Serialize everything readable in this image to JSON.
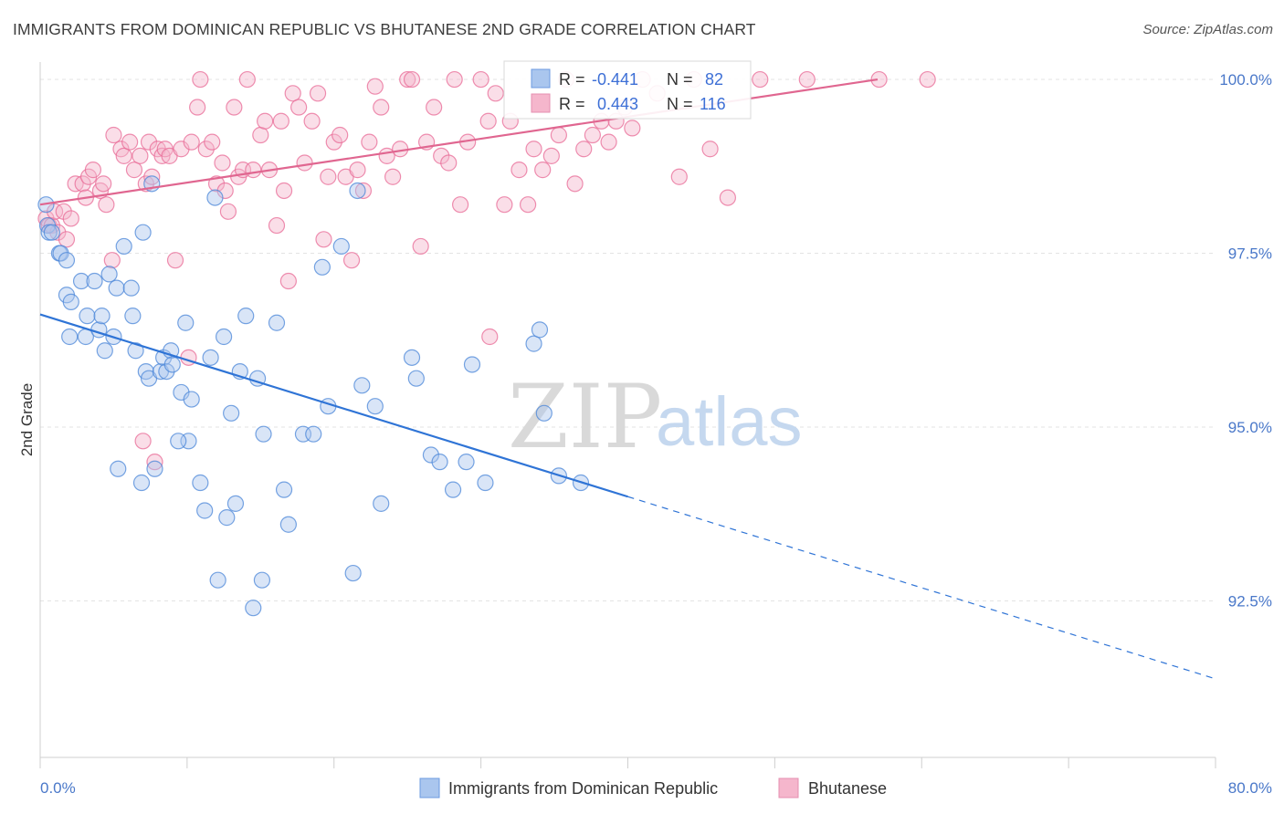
{
  "header": {
    "title": "IMMIGRANTS FROM DOMINICAN REPUBLIC VS BHUTANESE 2ND GRADE CORRELATION CHART",
    "source": "Source: ZipAtlas.com"
  },
  "watermark": {
    "part1": "ZIP",
    "part2": "atlas"
  },
  "colors": {
    "blue": "#4a86d8",
    "pink": "#e86a96",
    "blue_fill": "#aac6ee",
    "pink_fill": "#f5b6cc",
    "axis_text": "#4a78c9"
  },
  "legend_box": {
    "rows": [
      {
        "r_label": "R =",
        "r_value": "-0.441",
        "n_label": "N =",
        "n_value": "82"
      },
      {
        "r_label": "R =",
        "r_value": "0.443",
        "n_label": "N =",
        "n_value": "116"
      }
    ]
  },
  "bottom_legend": [
    {
      "label": "Immigrants from Dominican Republic"
    },
    {
      "label": "Bhutanese"
    }
  ],
  "chart_data": {
    "type": "scatter",
    "title": "IMMIGRANTS FROM DOMINICAN REPUBLIC VS BHUTANESE 2ND GRADE CORRELATION CHART",
    "xlabel": "",
    "ylabel": "2nd Grade",
    "x_tick_labels": [
      "0.0%",
      "80.0%"
    ],
    "y_tick_labels": [
      "100.0%",
      "97.5%",
      "95.0%",
      "92.5%"
    ],
    "xlim": [
      0,
      80
    ],
    "ylim": [
      90.25,
      100.25
    ],
    "grid": true,
    "legend_position": "bottom",
    "series": [
      {
        "name": "Immigrants from Dominican Republic",
        "color": "#4a86d8",
        "r": -0.441,
        "n": 82,
        "trend": {
          "x_start": 0,
          "y_start": 96.62,
          "x_solid_end": 40,
          "y_solid_end": 94.0,
          "x_end": 80,
          "y_end": 91.38
        },
        "points": [
          [
            0.4,
            98.2
          ],
          [
            0.5,
            97.9
          ],
          [
            0.6,
            97.8
          ],
          [
            0.8,
            97.8
          ],
          [
            1.3,
            97.5
          ],
          [
            1.4,
            97.5
          ],
          [
            1.8,
            97.4
          ],
          [
            1.8,
            96.9
          ],
          [
            2.1,
            96.8
          ],
          [
            2.0,
            96.3
          ],
          [
            2.8,
            97.1
          ],
          [
            3.2,
            96.6
          ],
          [
            3.1,
            96.3
          ],
          [
            3.7,
            97.1
          ],
          [
            4.0,
            96.4
          ],
          [
            4.2,
            96.6
          ],
          [
            4.4,
            96.1
          ],
          [
            4.7,
            97.2
          ],
          [
            5.0,
            96.3
          ],
          [
            5.2,
            97.0
          ],
          [
            5.7,
            97.6
          ],
          [
            6.2,
            97.0
          ],
          [
            6.3,
            96.6
          ],
          [
            6.5,
            96.1
          ],
          [
            7.0,
            97.8
          ],
          [
            7.2,
            95.8
          ],
          [
            7.4,
            95.7
          ],
          [
            7.6,
            98.5
          ],
          [
            8.2,
            95.8
          ],
          [
            8.4,
            96.0
          ],
          [
            8.6,
            95.8
          ],
          [
            8.9,
            96.1
          ],
          [
            9.0,
            95.9
          ],
          [
            9.6,
            95.5
          ],
          [
            9.9,
            96.5
          ],
          [
            10.3,
            95.4
          ],
          [
            10.1,
            94.8
          ],
          [
            9.4,
            94.8
          ],
          [
            10.9,
            94.2
          ],
          [
            11.2,
            93.8
          ],
          [
            11.6,
            96.0
          ],
          [
            11.9,
            98.3
          ],
          [
            12.1,
            92.8
          ],
          [
            12.5,
            96.3
          ],
          [
            12.7,
            93.7
          ],
          [
            13.0,
            95.2
          ],
          [
            13.3,
            93.9
          ],
          [
            13.6,
            95.8
          ],
          [
            14.0,
            96.6
          ],
          [
            14.5,
            92.4
          ],
          [
            14.8,
            95.7
          ],
          [
            15.2,
            94.9
          ],
          [
            15.1,
            92.8
          ],
          [
            16.1,
            96.5
          ],
          [
            16.6,
            94.1
          ],
          [
            16.9,
            93.6
          ],
          [
            17.9,
            94.9
          ],
          [
            18.6,
            94.9
          ],
          [
            19.2,
            97.3
          ],
          [
            19.6,
            95.3
          ],
          [
            20.5,
            97.6
          ],
          [
            21.3,
            92.9
          ],
          [
            21.6,
            98.4
          ],
          [
            21.9,
            95.6
          ],
          [
            22.8,
            95.3
          ],
          [
            23.2,
            93.9
          ],
          [
            25.3,
            96.0
          ],
          [
            25.6,
            95.7
          ],
          [
            26.6,
            94.6
          ],
          [
            27.2,
            94.5
          ],
          [
            28.1,
            94.1
          ],
          [
            29.0,
            94.5
          ],
          [
            29.4,
            95.9
          ],
          [
            30.3,
            94.2
          ],
          [
            33.6,
            96.2
          ],
          [
            34.0,
            96.4
          ],
          [
            34.3,
            95.2
          ],
          [
            35.3,
            94.3
          ],
          [
            36.8,
            94.2
          ],
          [
            5.3,
            94.4
          ],
          [
            7.8,
            94.4
          ],
          [
            6.9,
            94.2
          ]
        ]
      },
      {
        "name": "Bhutanese",
        "color": "#e86a96",
        "r": 0.443,
        "n": 116,
        "trend": {
          "x_start": 0,
          "y_start": 98.2,
          "x_end": 57,
          "y_end": 100.0
        },
        "points": [
          [
            0.4,
            98.0
          ],
          [
            0.6,
            97.9
          ],
          [
            0.8,
            97.9
          ],
          [
            1.0,
            98.1
          ],
          [
            1.2,
            97.8
          ],
          [
            1.6,
            98.1
          ],
          [
            1.8,
            97.7
          ],
          [
            2.1,
            98.0
          ],
          [
            2.4,
            98.5
          ],
          [
            2.9,
            98.5
          ],
          [
            3.1,
            98.3
          ],
          [
            3.3,
            98.6
          ],
          [
            3.6,
            98.7
          ],
          [
            4.1,
            98.4
          ],
          [
            4.3,
            98.5
          ],
          [
            4.5,
            98.2
          ],
          [
            4.9,
            97.4
          ],
          [
            5.0,
            99.2
          ],
          [
            5.5,
            99.0
          ],
          [
            5.7,
            98.9
          ],
          [
            6.1,
            99.1
          ],
          [
            6.4,
            98.7
          ],
          [
            6.8,
            98.9
          ],
          [
            7.2,
            98.5
          ],
          [
            7.4,
            99.1
          ],
          [
            7.6,
            98.6
          ],
          [
            8.0,
            99.0
          ],
          [
            8.3,
            98.9
          ],
          [
            8.5,
            99.0
          ],
          [
            8.8,
            98.9
          ],
          [
            9.2,
            97.4
          ],
          [
            9.6,
            99.0
          ],
          [
            10.1,
            96.0
          ],
          [
            10.3,
            99.1
          ],
          [
            10.7,
            99.6
          ],
          [
            10.9,
            100.0
          ],
          [
            11.3,
            99.0
          ],
          [
            11.7,
            99.1
          ],
          [
            12.0,
            98.5
          ],
          [
            12.4,
            98.8
          ],
          [
            12.6,
            98.4
          ],
          [
            12.8,
            98.1
          ],
          [
            13.2,
            99.6
          ],
          [
            13.5,
            98.6
          ],
          [
            13.8,
            98.7
          ],
          [
            14.1,
            100.0
          ],
          [
            14.5,
            98.7
          ],
          [
            15.0,
            99.2
          ],
          [
            15.3,
            99.4
          ],
          [
            15.6,
            98.7
          ],
          [
            16.1,
            97.9
          ],
          [
            16.4,
            99.4
          ],
          [
            16.6,
            98.4
          ],
          [
            16.9,
            97.1
          ],
          [
            17.2,
            99.8
          ],
          [
            17.6,
            99.6
          ],
          [
            18.0,
            98.8
          ],
          [
            18.5,
            99.4
          ],
          [
            18.9,
            99.8
          ],
          [
            19.3,
            97.7
          ],
          [
            19.6,
            98.6
          ],
          [
            20.0,
            99.1
          ],
          [
            20.4,
            99.2
          ],
          [
            20.8,
            98.6
          ],
          [
            21.2,
            97.4
          ],
          [
            21.6,
            98.7
          ],
          [
            22.0,
            98.4
          ],
          [
            22.4,
            99.1
          ],
          [
            22.8,
            99.9
          ],
          [
            23.2,
            99.6
          ],
          [
            23.6,
            98.9
          ],
          [
            24.0,
            98.6
          ],
          [
            24.5,
            99.0
          ],
          [
            25.0,
            100.0
          ],
          [
            25.3,
            100.0
          ],
          [
            25.9,
            97.6
          ],
          [
            26.3,
            99.1
          ],
          [
            26.8,
            99.6
          ],
          [
            27.3,
            98.9
          ],
          [
            27.8,
            98.8
          ],
          [
            28.2,
            100.0
          ],
          [
            28.6,
            98.2
          ],
          [
            29.1,
            99.1
          ],
          [
            30.0,
            100.0
          ],
          [
            30.5,
            99.4
          ],
          [
            31.0,
            99.8
          ],
          [
            31.6,
            98.2
          ],
          [
            32.0,
            99.4
          ],
          [
            32.6,
            98.7
          ],
          [
            33.2,
            98.2
          ],
          [
            33.6,
            99.0
          ],
          [
            34.2,
            98.7
          ],
          [
            34.8,
            98.9
          ],
          [
            35.3,
            99.2
          ],
          [
            35.8,
            100.0
          ],
          [
            36.4,
            98.5
          ],
          [
            37.0,
            99.0
          ],
          [
            37.6,
            99.2
          ],
          [
            38.2,
            99.4
          ],
          [
            38.7,
            99.1
          ],
          [
            39.2,
            99.4
          ],
          [
            39.8,
            99.6
          ],
          [
            40.3,
            99.3
          ],
          [
            41.0,
            100.0
          ],
          [
            42.0,
            99.8
          ],
          [
            43.5,
            98.6
          ],
          [
            44.5,
            100.0
          ],
          [
            45.6,
            99.0
          ],
          [
            46.8,
            98.3
          ],
          [
            49.0,
            100.0
          ],
          [
            52.2,
            100.0
          ],
          [
            57.1,
            100.0
          ],
          [
            60.4,
            100.0
          ],
          [
            30.6,
            96.3
          ],
          [
            7.0,
            94.8
          ],
          [
            7.8,
            94.5
          ]
        ]
      }
    ]
  }
}
